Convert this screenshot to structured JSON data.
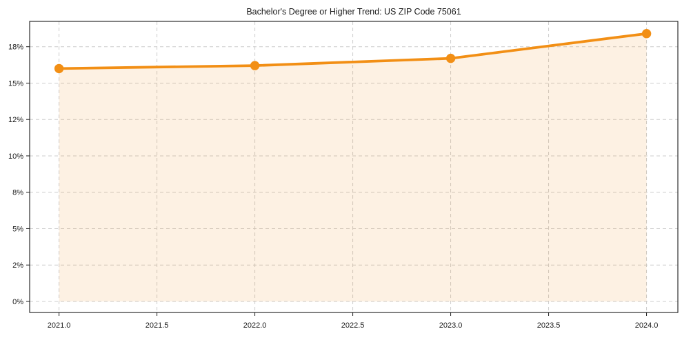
{
  "chart_data": {
    "type": "line",
    "title": "Bachelor's Degree or Higher Trend: US ZIP Code 75061",
    "xlabel": "",
    "ylabel": "",
    "x": [
      2021,
      2022,
      2023,
      2024
    ],
    "values": [
      16.0,
      16.2,
      16.7,
      18.4
    ],
    "x_tick_values": [
      2021.0,
      2021.5,
      2022.0,
      2022.5,
      2023.0,
      2023.5,
      2024.0
    ],
    "x_tick_labels": [
      "2021.0",
      "2021.5",
      "2022.0",
      "2022.5",
      "2023.0",
      "2023.5",
      "2024.0"
    ],
    "y_tick_values": [
      0,
      2.5,
      5,
      7.5,
      10,
      12.5,
      15,
      17.5
    ],
    "y_tick_labels": [
      "0%",
      "2%",
      "5%",
      "8%",
      "10%",
      "12%",
      "15%",
      "18%"
    ],
    "xlim": [
      2020.85,
      2024.16
    ],
    "ylim": [
      -0.76,
      19.24
    ],
    "grid": true,
    "grid_style": "dashed",
    "legend": false,
    "area_fill_under_line": true,
    "line_color": "#F28F15",
    "marker_color": "#F28F15",
    "fill_color": "#F28F15",
    "fill_opacity": 0.12,
    "grid_color": "#cccccc",
    "axis_color": "#1a1a1a",
    "text_color": "#1a1a1a",
    "background_color": "#ffffff"
  }
}
